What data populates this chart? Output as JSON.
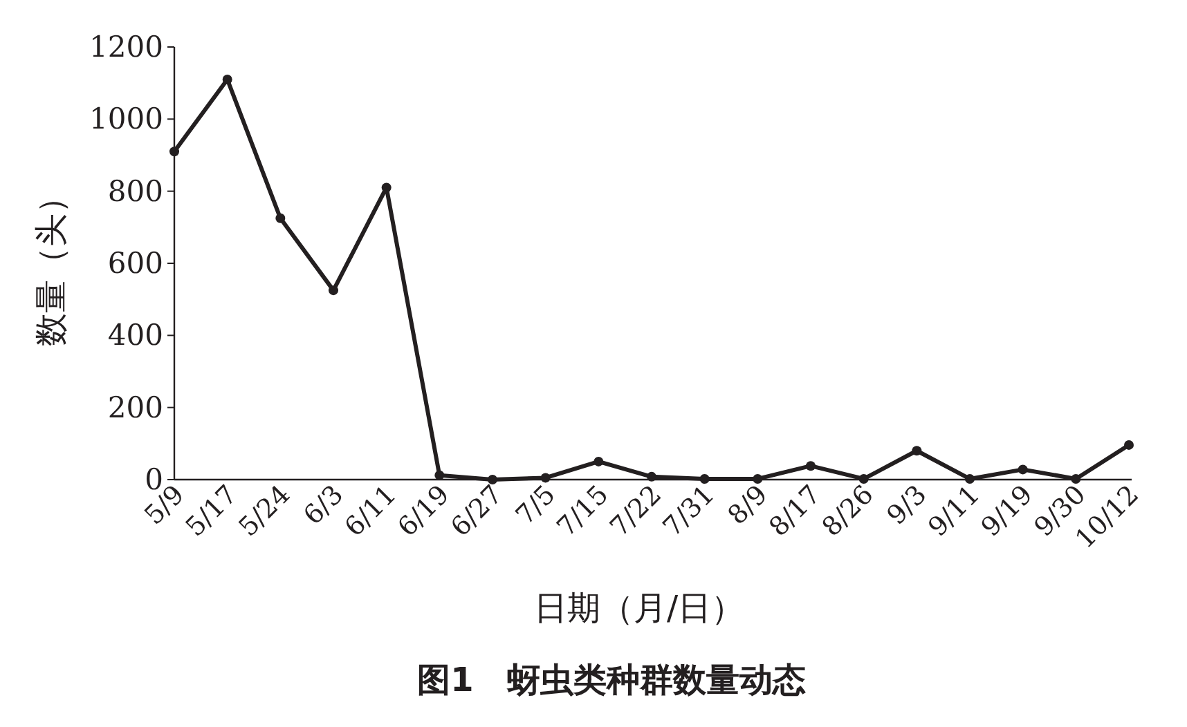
{
  "chart_data": {
    "type": "line",
    "title": "图1　蚜虫类种群数量动态",
    "xlabel": "日期（月/日）",
    "ylabel": "数量（头）",
    "categories": [
      "5/9",
      "5/17",
      "5/24",
      "6/3",
      "6/11",
      "6/19",
      "6/27",
      "7/5",
      "7/15",
      "7/22",
      "7/31",
      "8/9",
      "8/17",
      "8/26",
      "9/3",
      "9/11",
      "9/19",
      "9/30",
      "10/12"
    ],
    "series": [
      {
        "color": "#231f20",
        "values": [
          910,
          1110,
          725,
          525,
          810,
          12,
          0,
          5,
          50,
          8,
          2,
          2,
          38,
          2,
          80,
          2,
          28,
          2,
          96
        ]
      }
    ],
    "ylim": [
      0,
      1200
    ],
    "yticks": [
      0,
      200,
      400,
      600,
      800,
      1000,
      1200
    ],
    "marker": "circle",
    "line_style": "solid",
    "grid": false
  }
}
